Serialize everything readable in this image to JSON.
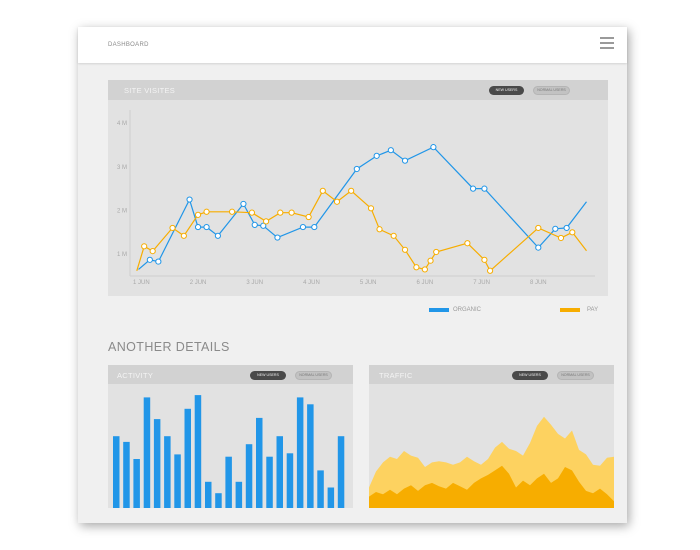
{
  "header": {
    "title": "DASHBOARD",
    "menu_icon": "hamburger-menu-icon"
  },
  "site_visits": {
    "title": "SITE VISITES",
    "toggle": [
      "NEW USERS",
      "NORMAL USERS"
    ],
    "legend": [
      {
        "label": "ORGANIC",
        "color": "#2196e8"
      },
      {
        "label": "PAY",
        "color": "#f7ad00"
      }
    ]
  },
  "section_title": "ANOTHER DETAILS",
  "activity": {
    "title": "ACTIVITY",
    "toggle": [
      "NEW USERS",
      "NORMAL USERS"
    ]
  },
  "traffic": {
    "title": "TRAFFIC",
    "toggle": [
      "NEW USERS",
      "NORMAL USERS"
    ]
  },
  "chart_data": [
    {
      "type": "line",
      "title": "SITE VISITES",
      "x_ticks": [
        "1 JUN",
        "2 JUN",
        "3 JUN",
        "4 JUN",
        "5 JUN",
        "6 JUN",
        "7 JUN",
        "8 JUN"
      ],
      "y_ticks": [
        "1 M",
        "2 M",
        "3 M",
        "4 M"
      ],
      "xlim": [
        0.8,
        9.0
      ],
      "ylim": [
        0.5,
        4.3
      ],
      "series": [
        {
          "name": "ORGANIC",
          "color": "#2196e8",
          "x": [
            0.95,
            1.15,
            1.3,
            1.85,
            2.0,
            2.15,
            2.35,
            2.8,
            3.0,
            3.15,
            3.4,
            3.85,
            4.05,
            4.8,
            5.15,
            5.4,
            5.65,
            6.15,
            6.85,
            7.05,
            8.0,
            8.3,
            8.5,
            8.85
          ],
          "y": [
            0.65,
            0.87,
            0.83,
            2.25,
            1.62,
            1.62,
            1.42,
            2.15,
            1.67,
            1.65,
            1.38,
            1.62,
            1.62,
            2.95,
            3.25,
            3.38,
            3.14,
            3.45,
            2.5,
            2.5,
            1.15,
            1.58,
            1.6,
            2.2
          ]
        },
        {
          "name": "PAY",
          "color": "#f7ad00",
          "x": [
            0.92,
            1.05,
            1.2,
            1.55,
            1.75,
            2.0,
            2.15,
            2.6,
            2.95,
            3.2,
            3.45,
            3.65,
            3.95,
            4.2,
            4.45,
            4.7,
            5.05,
            5.2,
            5.45,
            5.65,
            5.85,
            6.0,
            6.1,
            6.2,
            6.75,
            7.05,
            7.15,
            8.0,
            8.4,
            8.6,
            8.85
          ],
          "y": [
            0.62,
            1.18,
            1.07,
            1.6,
            1.42,
            1.9,
            1.97,
            1.97,
            1.95,
            1.75,
            1.95,
            1.95,
            1.85,
            2.45,
            2.2,
            2.45,
            2.05,
            1.57,
            1.42,
            1.1,
            0.7,
            0.65,
            0.85,
            1.05,
            1.25,
            0.87,
            0.62,
            1.6,
            1.37,
            1.5,
            1.08
          ]
        }
      ]
    },
    {
      "type": "bar",
      "title": "ACTIVITY",
      "color": "#2196e8",
      "ylim": [
        0,
        1
      ],
      "values": [
        0.63,
        0.58,
        0.43,
        0.97,
        0.78,
        0.63,
        0.47,
        0.87,
        0.99,
        0.23,
        0.13,
        0.45,
        0.23,
        0.56,
        0.79,
        0.45,
        0.63,
        0.48,
        0.97,
        0.91,
        0.33,
        0.18,
        0.63
      ]
    },
    {
      "type": "area",
      "title": "TRAFFIC",
      "ylim": [
        0,
        1
      ],
      "series": [
        {
          "color": "#fdd260",
          "values": [
            0.18,
            0.32,
            0.4,
            0.45,
            0.43,
            0.5,
            0.46,
            0.44,
            0.36,
            0.4,
            0.41,
            0.4,
            0.38,
            0.4,
            0.45,
            0.41,
            0.38,
            0.43,
            0.53,
            0.58,
            0.52,
            0.5,
            0.46,
            0.57,
            0.72,
            0.8,
            0.73,
            0.65,
            0.61,
            0.68,
            0.51,
            0.47,
            0.38,
            0.37,
            0.44,
            0.45
          ]
        },
        {
          "color": "#f7ad00",
          "values": [
            0.1,
            0.14,
            0.12,
            0.16,
            0.12,
            0.17,
            0.2,
            0.15,
            0.2,
            0.22,
            0.19,
            0.17,
            0.22,
            0.19,
            0.16,
            0.22,
            0.26,
            0.29,
            0.33,
            0.37,
            0.3,
            0.18,
            0.24,
            0.2,
            0.26,
            0.3,
            0.22,
            0.26,
            0.36,
            0.33,
            0.23,
            0.15,
            0.13,
            0.17,
            0.12,
            0.06
          ]
        }
      ]
    }
  ]
}
